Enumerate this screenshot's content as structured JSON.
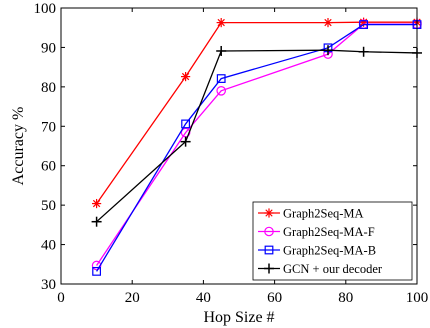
{
  "chart_data": {
    "type": "line",
    "title": "",
    "xlabel": "Hop Size #",
    "ylabel": "Accuracy %",
    "xlim": [
      0,
      100
    ],
    "ylim": [
      30,
      100
    ],
    "xticks": [
      0,
      20,
      40,
      60,
      80,
      100
    ],
    "yticks": [
      30,
      40,
      50,
      60,
      70,
      80,
      90,
      100
    ],
    "grid": false,
    "legend_position": "bottom-right",
    "x": [
      10,
      35,
      45,
      75,
      85,
      100
    ],
    "series": [
      {
        "name": "Graph2Seq-MA",
        "color": "#ff0000",
        "marker": "asterisk",
        "values": [
          50.4,
          82.6,
          96.3,
          96.3,
          96.4,
          96.4
        ]
      },
      {
        "name": "Graph2Seq-MA-F",
        "color": "#ff00ff",
        "marker": "circle",
        "values": [
          34.7,
          68.4,
          79.0,
          88.3,
          95.9,
          95.9
        ]
      },
      {
        "name": "Graph2Seq-MA-B",
        "color": "#0000ff",
        "marker": "square",
        "values": [
          33.2,
          70.6,
          82.1,
          89.9,
          95.8,
          95.8
        ]
      },
      {
        "name": "GCN + our decoder",
        "color": "#000000",
        "marker": "plus",
        "values": [
          45.8,
          66.1,
          89.1,
          89.3,
          88.9,
          88.6
        ]
      }
    ]
  }
}
